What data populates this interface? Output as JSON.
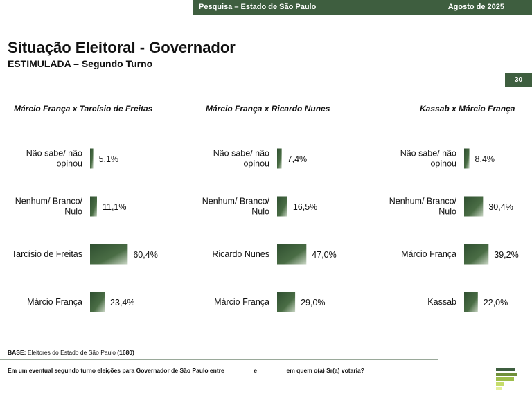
{
  "header": {
    "survey": "Pesquisa – Estado de São Paulo",
    "date": "Agosto de 2025",
    "page_number": "30"
  },
  "title": "Situação Eleitoral - Governador",
  "subtitle": "ESTIMULADA – Segundo Turno",
  "colors": {
    "accent": "#3e5e3f",
    "bar_dark": "#2f4f30",
    "bar_light": "#c9d6c4"
  },
  "chart_data": [
    {
      "type": "bar",
      "orientation": "horizontal",
      "title": "Márcio França x Tarcísio de Freitas",
      "categories": [
        [
          "Não sabe/ não",
          "opinou"
        ],
        [
          "Nenhum/ Branco/",
          "Nulo"
        ],
        [
          "Tarcísio de Freitas"
        ],
        [
          "Márcio França"
        ]
      ],
      "values": [
        5.1,
        11.1,
        60.4,
        23.4
      ],
      "labels": [
        "5,1%",
        "11,1%",
        "60,4%",
        "23,4%"
      ],
      "xlim": [
        0,
        100
      ]
    },
    {
      "type": "bar",
      "orientation": "horizontal",
      "title": "Márcio França x Ricardo Nunes",
      "categories": [
        [
          "Não sabe/ não",
          "opinou"
        ],
        [
          "Nenhum/ Branco/",
          "Nulo"
        ],
        [
          "Ricardo Nunes"
        ],
        [
          "Márcio França"
        ]
      ],
      "values": [
        7.4,
        16.5,
        47.0,
        29.0
      ],
      "labels": [
        "7,4%",
        "16,5%",
        "47,0%",
        "29,0%"
      ],
      "xlim": [
        0,
        100
      ]
    },
    {
      "type": "bar",
      "orientation": "horizontal",
      "title": "Kassab x Márcio França",
      "categories": [
        [
          "Não sabe/ não",
          "opinou"
        ],
        [
          "Nenhum/ Branco/",
          "Nulo"
        ],
        [
          "Márcio França"
        ],
        [
          "Kassab"
        ]
      ],
      "values": [
        8.4,
        30.4,
        39.2,
        22.0
      ],
      "labels": [
        "8,4%",
        "30,4%",
        "39,2%",
        "22,0%"
      ],
      "xlim": [
        0,
        100
      ]
    }
  ],
  "footer": {
    "base_label": "BASE:",
    "base_text": " Eleitores do Estado de São Paulo ",
    "base_count": "(1680)",
    "question": "Em um eventual segundo turno eleições para Governador de São Paulo entre ________ e ________ em quem o(a) Sr(a) votaria?"
  }
}
